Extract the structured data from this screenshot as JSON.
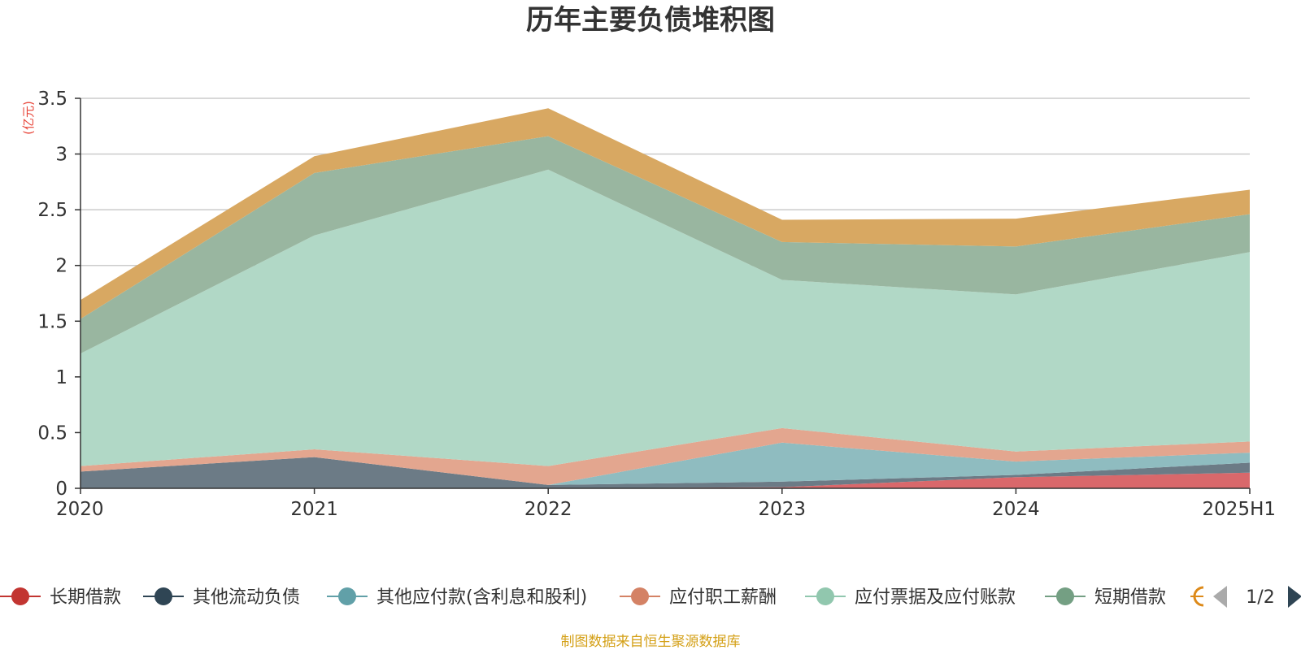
{
  "chart_data": {
    "type": "area",
    "stacked": true,
    "title": "历年主要负债堆积图",
    "unit_label": "(亿元)",
    "categories": [
      "2020",
      "2021",
      "2022",
      "2023",
      "2024",
      "2025H1"
    ],
    "ylim": [
      0,
      3.5
    ],
    "yticks": [
      "0",
      "0.5",
      "1",
      "1.5",
      "2",
      "2.5",
      "3",
      "3.5"
    ],
    "grid": true,
    "series": [
      {
        "name": "长期借款",
        "color": "#d9686b",
        "values": [
          0,
          0,
          0,
          0.01,
          0.1,
          0.14
        ]
      },
      {
        "name": "其他流动负债",
        "color": "#6c7b86",
        "values": [
          0.15,
          0.28,
          0.03,
          0.05,
          0.02,
          0.09
        ]
      },
      {
        "name": "其他应付款(含利息和股利)",
        "color": "#8fbcc0",
        "values": [
          0,
          0,
          0,
          0.35,
          0.12,
          0.09
        ]
      },
      {
        "name": "应付职工薪酬",
        "color": "#e3a68f",
        "values": [
          0.05,
          0.07,
          0.17,
          0.13,
          0.09,
          0.1
        ]
      },
      {
        "name": "应付票据及应付账款",
        "color": "#b1d8c6",
        "values": [
          1.01,
          1.92,
          2.66,
          1.33,
          1.41,
          1.7
        ]
      },
      {
        "name": "短期借款",
        "color": "#99b6a0",
        "values": [
          0.31,
          0.56,
          0.3,
          0.34,
          0.43,
          0.34
        ]
      },
      {
        "name": "",
        "color": "#d8a862",
        "values": [
          0.17,
          0.15,
          0.25,
          0.2,
          0.25,
          0.22
        ]
      }
    ],
    "legend": {
      "position": "bottom",
      "items": [
        {
          "label": "长期借款",
          "color": "#c23531"
        },
        {
          "label": "其他流动负债",
          "color": "#2f4554"
        },
        {
          "label": "其他应付款(含利息和股利)",
          "color": "#61a0a8"
        },
        {
          "label": "应付职工薪酬",
          "color": "#d48265"
        },
        {
          "label": "应付票据及应付账款",
          "color": "#91c7ae"
        },
        {
          "label": "短期借款",
          "color": "#749f83"
        }
      ],
      "page": "1/2"
    },
    "footer": "制图数据来自恒生聚源数据库"
  }
}
